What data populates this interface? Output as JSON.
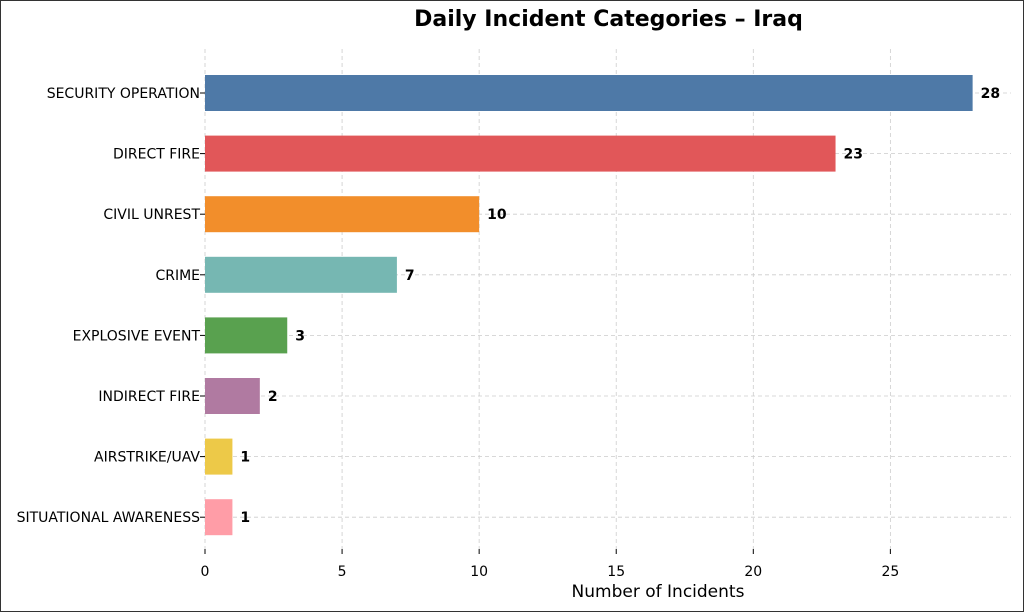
{
  "chart_data": {
    "type": "bar",
    "orientation": "horizontal",
    "title": "Daily Incident Categories – Iraq",
    "xlabel": "Number of Incidents",
    "ylabel": "",
    "xlim": [
      0,
      29.4
    ],
    "xticks": [
      0,
      5,
      10,
      15,
      20,
      25
    ],
    "grid": true,
    "categories": [
      "SECURITY OPERATION",
      "DIRECT FIRE",
      "CIVIL UNREST",
      "CRIME",
      "EXPLOSIVE EVENT",
      "INDIRECT FIRE",
      "AIRSTRIKE/UAV",
      "SITUATIONAL AWARENESS"
    ],
    "values": [
      28,
      23,
      10,
      7,
      3,
      2,
      1,
      1
    ],
    "colors": [
      "#4e79a7",
      "#e15759",
      "#f28e2b",
      "#76b7b2",
      "#59a14f",
      "#b07aa1",
      "#edc948",
      "#ff9da7"
    ]
  }
}
